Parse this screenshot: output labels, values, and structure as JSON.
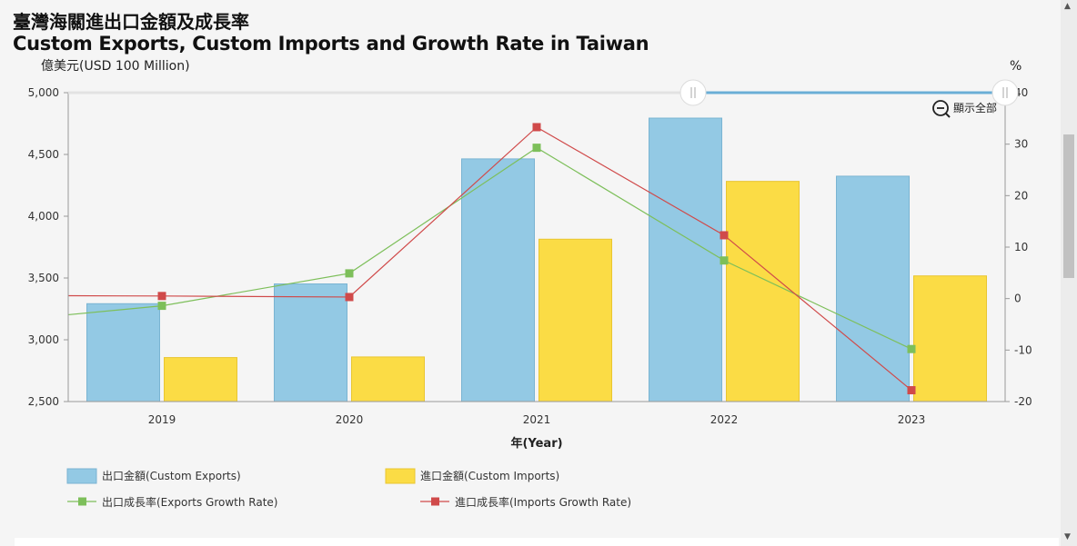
{
  "title_zh": "臺灣海關進出口金額及成長率",
  "title_en": "Custom Exports, Custom Imports and Growth Rate in Taiwan",
  "zoom_label": "顯示全部",
  "chart_data": {
    "type": "bar",
    "categories": [
      "2019",
      "2020",
      "2021",
      "2022",
      "2023"
    ],
    "ylabel_left": "億美元(USD 100 Million)",
    "ylabel_right": "%",
    "xlabel": "年(Year)",
    "ylim_left": [
      2500,
      5000
    ],
    "ylim_right": [
      -20,
      40
    ],
    "yticks_left": [
      "2,500",
      "3,000",
      "3,500",
      "4,000",
      "4,500",
      "5,000"
    ],
    "yticks_right": [
      "-20",
      "-10",
      "0",
      "10",
      "20",
      "30",
      "40"
    ],
    "series": [
      {
        "name": "出口金額(Custom Exports)",
        "type": "bar",
        "axis": "left",
        "color": "#93c9e4",
        "values": [
          3292,
          3452,
          4464,
          4794,
          4324
        ]
      },
      {
        "name": "進口金額(Custom Imports)",
        "type": "bar",
        "axis": "left",
        "color": "#fbdc45",
        "values": [
          2856,
          2861,
          3814,
          4282,
          3517
        ]
      },
      {
        "name": "出口成長率(Exports Growth Rate)",
        "type": "line",
        "axis": "right",
        "color": "#7dbf5a",
        "values": [
          -1.4,
          4.9,
          29.3,
          7.4,
          -9.8
        ]
      },
      {
        "name": "進口成長率(Imports Growth Rate)",
        "type": "line",
        "axis": "right",
        "color": "#d04a4a",
        "values": [
          0.5,
          0.3,
          33.3,
          12.3,
          -17.8
        ]
      }
    ],
    "legend": "bottom"
  }
}
